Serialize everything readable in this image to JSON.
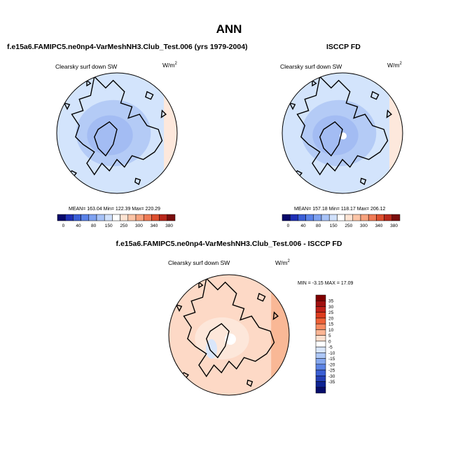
{
  "main_title": "ANN",
  "colors": {
    "abs_levels": [
      "#08086b",
      "#1f2fb5",
      "#3a5ed6",
      "#5a82e8",
      "#7ea1f0",
      "#a7c2f7",
      "#cfe0fb",
      "#ffffff",
      "#fde3d2",
      "#fbc4a6",
      "#f7a27e",
      "#ef7a55",
      "#dd4f2e",
      "#b8271a",
      "#7a0d0d"
    ],
    "diff_levels": [
      "#800000",
      "#a01010",
      "#c0211a",
      "#dd3c1e",
      "#ef6137",
      "#f88b62",
      "#fbb594",
      "#fde0cf",
      "#ffffff",
      "#d9e6fb",
      "#adc7f6",
      "#86a8ef",
      "#5d84e4",
      "#3b5fd4",
      "#2540b5",
      "#0f2494",
      "#060d6b"
    ]
  },
  "panels": {
    "left": {
      "title": "f.e15a6.FAMIPC5.ne0np4-VarMeshNH3.Club_Test.006 (yrs 1979-2004)",
      "variable": "Clearsky surf down SW",
      "units_base": "W/m",
      "units_exp": "2",
      "stats": "MEAN= 163.04  Min= 122.39  Max= 220.29"
    },
    "right": {
      "title": "ISCCP FD",
      "variable": "Clearsky surf down SW",
      "units_base": "W/m",
      "units_exp": "2",
      "stats": "MEAN= 157.18  Min= 118.17  Max= 206.12"
    },
    "diff": {
      "title": "f.e15a6.FAMIPC5.ne0np4-VarMeshNH3.Club_Test.006 - ISCCP FD",
      "variable": "Clearsky surf down SW",
      "units_base": "W/m",
      "units_exp": "2",
      "stats": "MIN =  -3.15  MAX =  17.09"
    }
  },
  "chart_data": [
    {
      "type": "heatmap",
      "title": "Clearsky surf down SW",
      "projection": "north-polar-stereographic",
      "units": "W/m2",
      "mean": 163.04,
      "min": 122.39,
      "max": 220.29,
      "colorbar_levels": [
        0,
        40,
        80,
        150,
        250,
        300,
        340,
        380
      ],
      "colorbar_labels": [
        "0",
        "40",
        "80",
        "150",
        "250",
        "300",
        "340",
        "380"
      ]
    },
    {
      "type": "heatmap",
      "title": "Clearsky surf down SW",
      "projection": "north-polar-stereographic",
      "units": "W/m2",
      "mean": 157.18,
      "min": 118.17,
      "max": 206.12,
      "colorbar_levels": [
        0,
        40,
        80,
        150,
        250,
        300,
        340,
        380
      ],
      "colorbar_labels": [
        "0",
        "40",
        "80",
        "150",
        "250",
        "300",
        "340",
        "380"
      ]
    },
    {
      "type": "heatmap",
      "title": "Clearsky surf down SW",
      "projection": "north-polar-stereographic",
      "units": "W/m2",
      "min": -3.15,
      "max": 17.09,
      "colorbar_levels": [
        35,
        30,
        25,
        20,
        15,
        10,
        5,
        0,
        -5,
        -10,
        -15,
        -20,
        -25,
        -30,
        -35
      ],
      "colorbar_labels": [
        "35",
        "30",
        "25",
        "20",
        "15",
        "10",
        "5",
        "0",
        "-5",
        "-10",
        "-15",
        "-20",
        "-25",
        "-30",
        "-35"
      ]
    }
  ]
}
